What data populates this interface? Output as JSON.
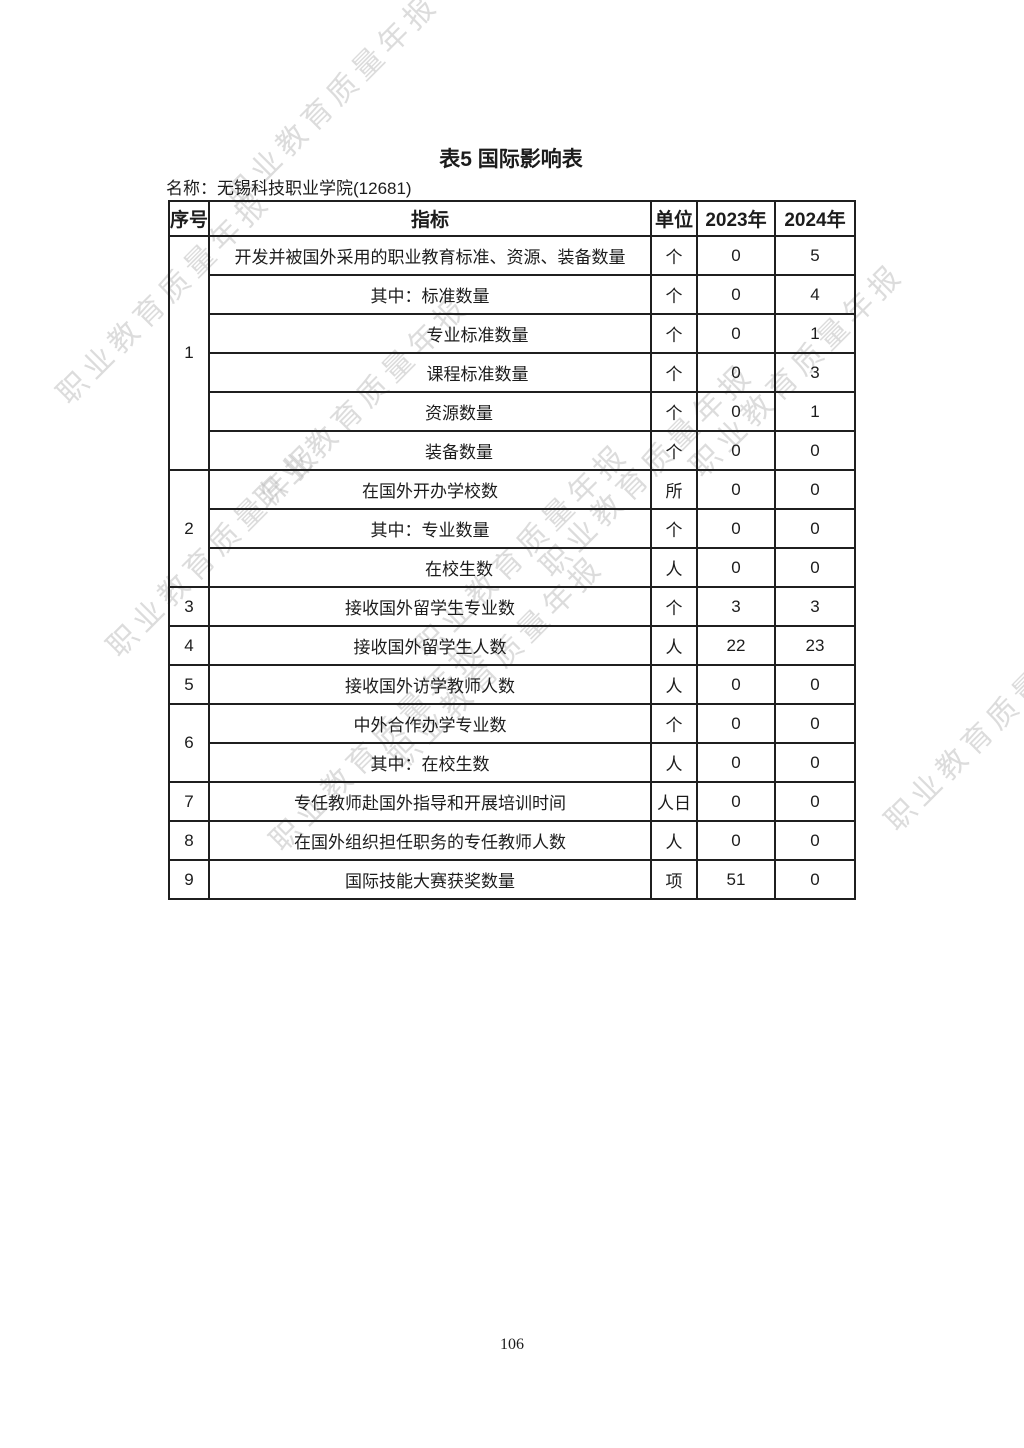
{
  "page": {
    "title": "表5 国际影响表",
    "name_label": "名称：无锡科技职业学院(12681)",
    "page_number": "106",
    "watermark_text": "职业教育质量年报"
  },
  "table": {
    "headers": [
      "序号",
      "指标",
      "单位",
      "2023年",
      "2024年"
    ],
    "rows": [
      {
        "no": "1",
        "rowspan": 6,
        "label": "开发并被国外采用的职业教育标准、资源、装备数量",
        "level": 0,
        "unit": "个",
        "y2023": "0",
        "y2024": "5"
      },
      {
        "no": null,
        "label": "其中：标准数量",
        "level": 0,
        "unit": "个",
        "y2023": "0",
        "y2024": "4"
      },
      {
        "no": null,
        "label": "专业标准数量",
        "level": 2,
        "unit": "个",
        "y2023": "0",
        "y2024": "1"
      },
      {
        "no": null,
        "label": "课程标准数量",
        "level": 2,
        "unit": "个",
        "y2023": "0",
        "y2024": "3"
      },
      {
        "no": null,
        "label": "资源数量",
        "level": 1,
        "unit": "个",
        "y2023": "0",
        "y2024": "1"
      },
      {
        "no": null,
        "label": "装备数量",
        "level": 1,
        "unit": "个",
        "y2023": "0",
        "y2024": "0"
      },
      {
        "no": "2",
        "rowspan": 3,
        "label": "在国外开办学校数",
        "level": 0,
        "unit": "所",
        "y2023": "0",
        "y2024": "0"
      },
      {
        "no": null,
        "label": "其中：专业数量",
        "level": 0,
        "unit": "个",
        "y2023": "0",
        "y2024": "0"
      },
      {
        "no": null,
        "label": "在校生数",
        "level": 1,
        "unit": "人",
        "y2023": "0",
        "y2024": "0"
      },
      {
        "no": "3",
        "rowspan": 1,
        "label": "接收国外留学生专业数",
        "level": 0,
        "unit": "个",
        "y2023": "3",
        "y2024": "3"
      },
      {
        "no": "4",
        "rowspan": 1,
        "label": "接收国外留学生人数",
        "level": 0,
        "unit": "人",
        "y2023": "22",
        "y2024": "23"
      },
      {
        "no": "5",
        "rowspan": 1,
        "label": "接收国外访学教师人数",
        "level": 0,
        "unit": "人",
        "y2023": "0",
        "y2024": "0"
      },
      {
        "no": "6",
        "rowspan": 2,
        "label": "中外合作办学专业数",
        "level": 0,
        "unit": "个",
        "y2023": "0",
        "y2024": "0"
      },
      {
        "no": null,
        "label": "其中：在校生数",
        "level": 0,
        "unit": "人",
        "y2023": "0",
        "y2024": "0"
      },
      {
        "no": "7",
        "rowspan": 1,
        "label": "专任教师赴国外指导和开展培训时间",
        "level": 0,
        "unit": "人日",
        "y2023": "0",
        "y2024": "0"
      },
      {
        "no": "8",
        "rowspan": 1,
        "label": "在国外组织担任职务的专任教师人数",
        "level": 0,
        "unit": "人",
        "y2023": "0",
        "y2024": "0"
      },
      {
        "no": "9",
        "rowspan": 1,
        "label": "国际技能大赛获奖数量",
        "level": 0,
        "unit": "项",
        "y2023": "51",
        "y2024": "0"
      }
    ]
  }
}
